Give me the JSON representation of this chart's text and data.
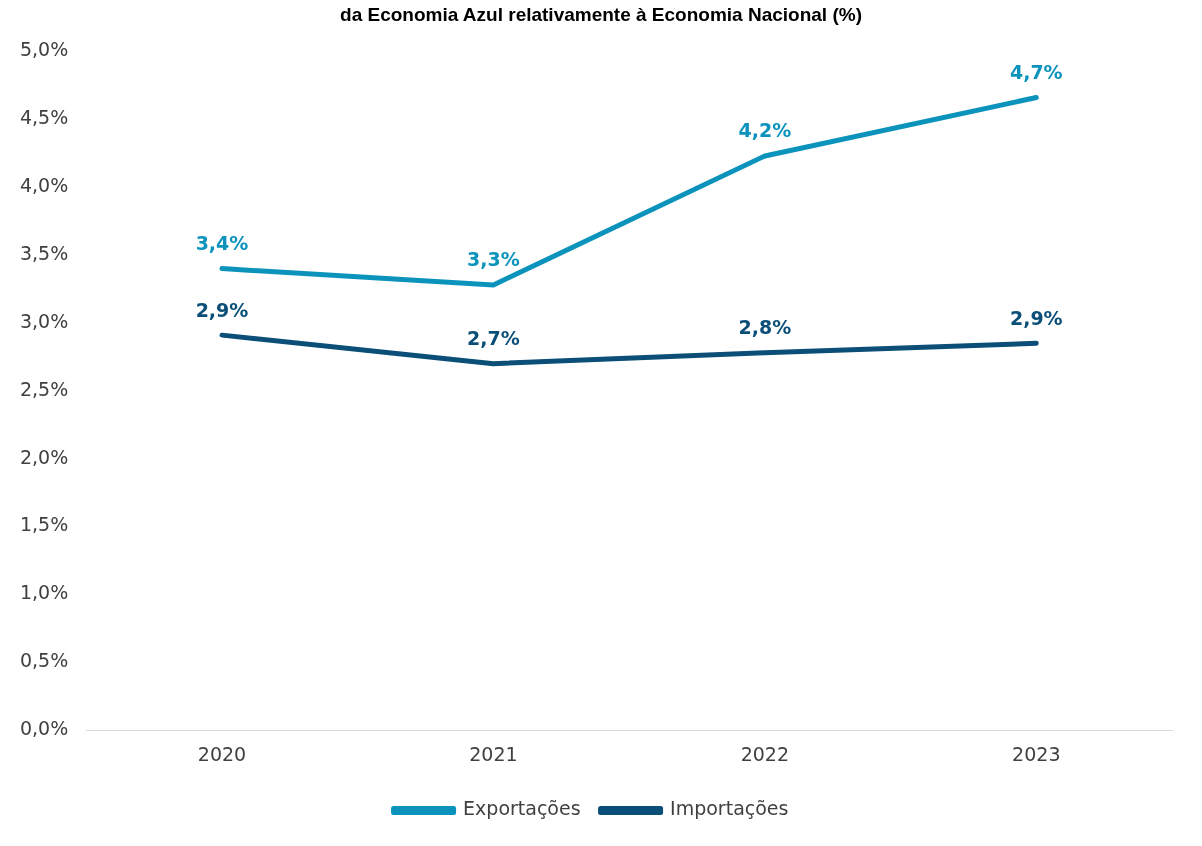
{
  "chart_data": {
    "type": "line",
    "title": "da Economia Azul relativamente à Economia Nacional (%)",
    "categories": [
      "2020",
      "2021",
      "2022",
      "2023"
    ],
    "series": [
      {
        "name": "Exportações",
        "color": "#0b93bc",
        "values": [
          3.4,
          3.28,
          4.23,
          4.66
        ],
        "value_labels": [
          "3,4%",
          "3,3%",
          "4,2%",
          "4,7%"
        ]
      },
      {
        "name": "Importações",
        "color": "#0b4f78",
        "values": [
          2.91,
          2.7,
          2.78,
          2.85
        ],
        "value_labels": [
          "2,9%",
          "2,7%",
          "2,8%",
          "2,9%"
        ]
      }
    ],
    "ylim": [
      0,
      5
    ],
    "yticks": [
      {
        "value": 0,
        "label": "0,0%"
      },
      {
        "value": 0.5,
        "label": "0,5%"
      },
      {
        "value": 1,
        "label": "1,0%"
      },
      {
        "value": 1.5,
        "label": "1,5%"
      },
      {
        "value": 2,
        "label": "2,0%"
      },
      {
        "value": 2.5,
        "label": "2,5%"
      },
      {
        "value": 3,
        "label": "3,0%"
      },
      {
        "value": 3.5,
        "label": "3,5%"
      },
      {
        "value": 4,
        "label": "4,0%"
      },
      {
        "value": 4.5,
        "label": "4,5%"
      },
      {
        "value": 5,
        "label": "5,0%"
      }
    ],
    "grid": false,
    "legend": "bottom",
    "marker": "none",
    "line_style": "solid"
  }
}
